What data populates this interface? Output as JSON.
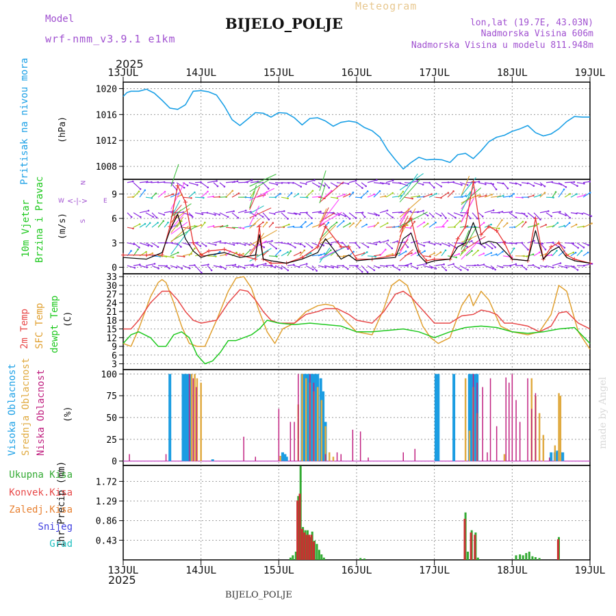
{
  "header": {
    "center_title": "Meteogram",
    "station": "BIJELO_POLJE",
    "model_label": "Model",
    "model_name": "wrf-nmm_v3.9.1 e1km",
    "lonlat": "lon,lat (19.7E, 43.03N)",
    "elevation": "Nadmorska Visina 606m",
    "model_elevation": "Nadmorska Visina u modelu 811.948m",
    "year_top": "2025",
    "year_bottom": "2025",
    "footer_station": "BIJELO_POLJE",
    "watermark": "made by Angel"
  },
  "colors": {
    "pressure": "#1ba0e6",
    "wind_speed": "#000000",
    "gust": "#e83030",
    "t2m": "#e84848",
    "sfc": "#e0a030",
    "dewpt": "#1dc81d",
    "high_cloud": "#1b9de2",
    "mid_cloud": "#e0aa40",
    "low_cloud": "#c02080",
    "total_precip": "#33aa33",
    "conv_precip": "#c83030"
  },
  "labels": {
    "pressure": "Pritisak na nivou mora",
    "pressure_unit": "(hPa)",
    "wind1": "10m Vjetar",
    "wind2": "Brzina i Pravac",
    "wind_unit": "(m/s)",
    "temp1": "2m Temp",
    "temp2": "SFC Temp",
    "temp3": "dewpt Temp",
    "temp_unit": "(C)",
    "cloud1": "Visoka Oblacnost",
    "cloud2": "Srednja Oblacnost",
    "cloud3": "Niska Oblacnost",
    "cloud_unit": "(%)",
    "precip_unit": "1hr Precip (mm)",
    "compass": {
      "n": "N",
      "w": "W",
      "e": "E",
      "s": "S"
    }
  },
  "precip_legend": [
    "Ukupna Kisa",
    "Konvek.Kisa",
    "Zaledj.Kisa",
    "Snijeg",
    "Grad"
  ],
  "chart_data": [
    {
      "type": "line",
      "id": "pressure",
      "x_ticks": [
        "13JUL",
        "14JUL",
        "15JUL",
        "16JUL",
        "17JUL",
        "18JUL",
        "19JUL"
      ],
      "ylim": [
        1006,
        1021
      ],
      "y_ticks": [
        1008,
        1012,
        1016,
        1020
      ],
      "series": [
        {
          "x": [
            0,
            0.05,
            0.1,
            0.2,
            0.3,
            0.4,
            0.5,
            0.6,
            0.7,
            0.8,
            0.9,
            1.0,
            1.1,
            1.2,
            1.3,
            1.4,
            1.5,
            1.6,
            1.7,
            1.8,
            1.9,
            2.0,
            2.1,
            2.2,
            2.3,
            2.4,
            2.5,
            2.6,
            2.7,
            2.8,
            2.9,
            3.0,
            3.1,
            3.2,
            3.3,
            3.4,
            3.5,
            3.6,
            3.7,
            3.8,
            3.9,
            4.0,
            4.1,
            4.2,
            4.3,
            4.4,
            4.5,
            4.6,
            4.7,
            4.8,
            4.9,
            5.0,
            5.1,
            5.2,
            5.3,
            5.4,
            5.5,
            5.6,
            5.7,
            5.8,
            5.9,
            6.0
          ],
          "y": [
            1018.8,
            1019.4,
            1019.6,
            1019.6,
            1019.9,
            1019.3,
            1018.2,
            1017.0,
            1016.8,
            1017.5,
            1019.6,
            1019.7,
            1019.5,
            1019.0,
            1017.3,
            1015.2,
            1014.3,
            1015.3,
            1016.3,
            1016.2,
            1015.6,
            1016.3,
            1016.2,
            1015.5,
            1014.4,
            1015.4,
            1015.5,
            1015.0,
            1014.2,
            1014.8,
            1015.0,
            1014.8,
            1014.0,
            1013.5,
            1012.5,
            1010.5,
            1009.0,
            1007.6,
            1008.6,
            1009.4,
            1009.0,
            1009.1,
            1009.0,
            1008.6,
            1009.8,
            1010.0,
            1009.2,
            1010.4,
            1011.8,
            1012.5,
            1012.8,
            1013.4,
            1013.8,
            1014.3,
            1013.2,
            1012.7,
            1013.0,
            1013.8,
            1014.9,
            1015.7,
            1015.6,
            1015.6
          ]
        }
      ]
    },
    {
      "type": "line",
      "id": "wind",
      "x_ticks": [
        "13JUL",
        "14JUL",
        "15JUL",
        "16JUL",
        "17JUL",
        "18JUL",
        "19JUL"
      ],
      "ylim": [
        -0.8,
        10.8
      ],
      "y_ticks": [
        0,
        3,
        6,
        9
      ],
      "series": [
        {
          "name": "speed",
          "x": [
            0,
            0.3,
            0.5,
            0.6,
            0.7,
            0.8,
            0.9,
            1.0,
            1.1,
            1.3,
            1.5,
            1.7,
            1.75,
            1.8,
            1.9,
            2.1,
            2.3,
            2.5,
            2.6,
            2.8,
            2.9,
            3.0,
            3.2,
            3.5,
            3.6,
            3.7,
            3.8,
            3.9,
            4.0,
            4.2,
            4.3,
            4.4,
            4.5,
            4.6,
            4.7,
            4.8,
            4.9,
            5.0,
            5.2,
            5.3,
            5.4,
            5.5,
            5.6,
            5.7,
            5.8,
            6.0
          ],
          "y": [
            1.2,
            1.0,
            1.8,
            4.5,
            6.5,
            3.5,
            2.0,
            1.2,
            1.5,
            1.8,
            1.2,
            1.5,
            4.0,
            1.0,
            0.8,
            0.5,
            1.0,
            1.8,
            3.5,
            1.0,
            1.5,
            0.8,
            1.0,
            1.2,
            3.5,
            4.2,
            1.5,
            0.5,
            0.8,
            1.0,
            2.5,
            3.0,
            5.5,
            2.8,
            3.2,
            3.0,
            2.0,
            1.0,
            0.8,
            4.5,
            1.0,
            2.0,
            2.5,
            1.2,
            0.8,
            0.5
          ]
        },
        {
          "name": "gust",
          "x": [
            0,
            0.3,
            0.5,
            0.6,
            0.7,
            0.8,
            0.9,
            1.0,
            1.1,
            1.3,
            1.5,
            1.7,
            1.75,
            1.8,
            1.9,
            2.1,
            2.3,
            2.5,
            2.6,
            2.8,
            2.9,
            3.0,
            3.2,
            3.5,
            3.6,
            3.7,
            3.8,
            3.9,
            4.0,
            4.2,
            4.3,
            4.4,
            4.5,
            4.6,
            4.7,
            4.8,
            4.9,
            5.0,
            5.2,
            5.3,
            5.4,
            5.5,
            5.6,
            5.7,
            5.8,
            6.0
          ],
          "y": [
            1.5,
            1.5,
            1.5,
            5.0,
            10.0,
            8.0,
            3.0,
            1.5,
            2.0,
            2.2,
            1.5,
            1.0,
            5.0,
            1.0,
            0.5,
            0.5,
            1.2,
            2.5,
            5.0,
            2.5,
            2.5,
            1.0,
            1.0,
            1.5,
            5.0,
            6.0,
            2.0,
            0.8,
            1.0,
            1.0,
            3.5,
            5.0,
            10.5,
            4.0,
            5.0,
            4.5,
            3.0,
            1.0,
            0.8,
            6.0,
            1.0,
            2.5,
            3.0,
            1.5,
            1.0,
            0.5
          ]
        }
      ]
    },
    {
      "type": "line",
      "id": "temperature",
      "x_ticks": [
        "13JUL",
        "14JUL",
        "15JUL",
        "16JUL",
        "17JUL",
        "18JUL",
        "19JUL"
      ],
      "ylim": [
        1,
        34
      ],
      "y_ticks": [
        3,
        6,
        9,
        12,
        15,
        18,
        21,
        24,
        27,
        30,
        33
      ],
      "series": [
        {
          "name": "2m Temp",
          "x": [
            0,
            0.1,
            0.2,
            0.35,
            0.5,
            0.6,
            0.7,
            0.8,
            0.9,
            1.0,
            1.2,
            1.35,
            1.5,
            1.6,
            1.7,
            1.8,
            1.9,
            2.0,
            2.2,
            2.35,
            2.5,
            2.6,
            2.75,
            2.9,
            3.0,
            3.2,
            3.35,
            3.5,
            3.6,
            3.7,
            3.8,
            3.9,
            4.0,
            4.2,
            4.35,
            4.5,
            4.6,
            4.7,
            4.8,
            4.9,
            5.0,
            5.2,
            5.35,
            5.5,
            5.6,
            5.7,
            5.85,
            6.0
          ],
          "y": [
            15,
            15,
            18,
            24,
            28,
            28,
            25,
            21,
            18,
            17,
            18,
            24,
            28.5,
            28,
            25,
            21,
            18,
            17,
            17,
            20,
            21,
            22,
            22,
            20,
            18,
            17,
            21,
            27,
            28,
            26,
            23,
            20,
            17,
            17,
            19.5,
            20,
            21.5,
            21,
            20,
            17,
            17,
            16,
            14,
            16,
            20.5,
            21,
            17,
            15
          ]
        },
        {
          "name": "SFC Temp",
          "x": [
            0,
            0.1,
            0.2,
            0.35,
            0.45,
            0.5,
            0.55,
            0.65,
            0.75,
            0.85,
            0.95,
            1.05,
            1.2,
            1.35,
            1.45,
            1.55,
            1.65,
            1.75,
            1.85,
            1.95,
            2.05,
            2.2,
            2.35,
            2.5,
            2.6,
            2.7,
            2.85,
            3.0,
            3.2,
            3.35,
            3.45,
            3.55,
            3.65,
            3.75,
            3.85,
            3.95,
            4.05,
            4.2,
            4.35,
            4.45,
            4.5,
            4.6,
            4.7,
            4.85,
            5.0,
            5.2,
            5.35,
            5.5,
            5.6,
            5.7,
            5.85,
            6.0
          ],
          "y": [
            10,
            9,
            15,
            26,
            31,
            32,
            31,
            24,
            16,
            10,
            9,
            9,
            18,
            28,
            32.5,
            33,
            29,
            21,
            14,
            10,
            15,
            17,
            21,
            23,
            23.5,
            23,
            18,
            14,
            13,
            22,
            30,
            32,
            30,
            23,
            16,
            12,
            10,
            12,
            23,
            27,
            23,
            28,
            25,
            16,
            14,
            13,
            14,
            20,
            30,
            28,
            14,
            8
          ]
        },
        {
          "name": "dewpt Temp",
          "x": [
            0,
            0.1,
            0.2,
            0.35,
            0.45,
            0.55,
            0.65,
            0.75,
            0.85,
            0.95,
            1.05,
            1.15,
            1.25,
            1.35,
            1.45,
            1.55,
            1.65,
            1.75,
            1.85,
            2.0,
            2.2,
            2.4,
            2.6,
            2.8,
            3.0,
            3.2,
            3.4,
            3.6,
            3.8,
            4.0,
            4.2,
            4.4,
            4.6,
            4.8,
            5.0,
            5.2,
            5.4,
            5.6,
            5.8,
            6.0
          ],
          "y": [
            10,
            13,
            14,
            12,
            9,
            9,
            13,
            14,
            12,
            6,
            3,
            4,
            7,
            11,
            11,
            12,
            13,
            15,
            18,
            17,
            16.5,
            17,
            16.5,
            16,
            14,
            14,
            14.5,
            15,
            14,
            12,
            14,
            15.5,
            16,
            15.5,
            14,
            13.5,
            14,
            15,
            15.5,
            10
          ]
        }
      ]
    },
    {
      "type": "bar",
      "id": "cloud_cover",
      "x_ticks": [
        "13JUL",
        "14JUL",
        "15JUL",
        "16JUL",
        "17JUL",
        "18JUL",
        "19JUL"
      ],
      "ylim": [
        -5,
        105
      ],
      "y_ticks": [
        0,
        25,
        50,
        75,
        100
      ],
      "series": [
        {
          "name": "Visoka Oblacnost",
          "x": [
            0.6,
            0.77,
            0.8,
            0.83,
            0.86,
            1.15,
            2.05,
            2.08,
            2.1,
            2.3,
            2.32,
            2.34,
            2.37,
            2.39,
            2.42,
            2.44,
            2.47,
            2.5,
            2.54,
            2.57,
            2.6,
            4.02,
            4.05,
            4.25,
            4.45,
            4.48,
            4.52,
            4.55,
            5.5,
            5.55,
            5.58,
            5.62,
            5.65
          ],
          "y": [
            100,
            100,
            100,
            100,
            100,
            2,
            10,
            8,
            5,
            100,
            100,
            100,
            100,
            100,
            100,
            100,
            100,
            100,
            95,
            80,
            45,
            100,
            100,
            100,
            100,
            100,
            100,
            100,
            10,
            10,
            12,
            10,
            10
          ]
        },
        {
          "name": "Srednja Oblacnost",
          "x": [
            0.88,
            0.92,
            0.95,
            1.0,
            2.02,
            2.25,
            2.3,
            2.35,
            2.4,
            2.45,
            2.5,
            2.55,
            2.6,
            2.65,
            2.7,
            4.4,
            4.45,
            4.5,
            4.55,
            4.9,
            5.25,
            5.3,
            5.35,
            5.4,
            5.55,
            5.6,
            5.62
          ],
          "y": [
            100,
            100,
            95,
            90,
            6,
            65,
            100,
            95,
            90,
            80,
            85,
            70,
            40,
            10,
            5,
            95,
            35,
            85,
            55,
            8,
            95,
            75,
            55,
            30,
            18,
            78,
            75
          ]
        },
        {
          "name": "Niska Oblacnost",
          "x": [
            0.08,
            0.55,
            0.85,
            0.9,
            0.94,
            1.55,
            1.7,
            2.0,
            2.15,
            2.2,
            2.25,
            2.4,
            2.45,
            2.6,
            2.75,
            2.8,
            2.95,
            3.05,
            3.15,
            3.6,
            3.75,
            4.5,
            4.55,
            4.62,
            4.68,
            4.72,
            4.8,
            4.92,
            4.96,
            5.0,
            5.05,
            5.1,
            5.2,
            5.25,
            5.3,
            5.48
          ],
          "y": [
            8,
            8,
            100,
            95,
            85,
            28,
            5,
            60,
            45,
            45,
            100,
            100,
            90,
            8,
            10,
            8,
            36,
            34,
            4,
            10,
            14,
            100,
            90,
            85,
            10,
            95,
            40,
            96,
            90,
            100,
            70,
            45,
            95,
            60,
            78,
            4
          ]
        }
      ]
    },
    {
      "type": "bar",
      "id": "precipitation",
      "x_ticks": [
        "13JUL",
        "14JUL",
        "15JUL",
        "16JUL",
        "17JUL",
        "18JUL",
        "19JUL"
      ],
      "ylim": [
        0,
        2.07
      ],
      "y_ticks": [
        0.43,
        0.86,
        1.29,
        1.72
      ],
      "series": [
        {
          "name": "Ukupna Kisa",
          "x": [
            2.15,
            2.18,
            2.22,
            2.25,
            2.28,
            2.31,
            2.34,
            2.37,
            2.4,
            2.43,
            2.46,
            2.49,
            2.52,
            2.55,
            2.58,
            3.05,
            3.1,
            4.4,
            4.43,
            4.48,
            4.53,
            4.56,
            5.05,
            5.1,
            5.14,
            5.18,
            5.22,
            5.26,
            5.3,
            5.35,
            5.6
          ],
          "y": [
            0.05,
            0.1,
            0.18,
            1.4,
            2.06,
            0.72,
            0.65,
            0.65,
            0.5,
            0.62,
            0.42,
            0.35,
            0.22,
            0.12,
            0.05,
            0.04,
            0.03,
            1.04,
            0.18,
            0.65,
            0.6,
            0.05,
            0.1,
            0.12,
            0.1,
            0.15,
            0.18,
            0.08,
            0.06,
            0.04,
            0.5
          ]
        },
        {
          "name": "Konvek.Kisa",
          "x": [
            2.24,
            2.27,
            2.3,
            2.33,
            2.36,
            2.39,
            2.42,
            2.45,
            4.39,
            4.47,
            4.52,
            5.59
          ],
          "y": [
            1.3,
            1.45,
            0.68,
            0.6,
            0.55,
            0.55,
            0.55,
            0.4,
            0.9,
            0.6,
            0.55,
            0.45
          ]
        }
      ]
    }
  ]
}
